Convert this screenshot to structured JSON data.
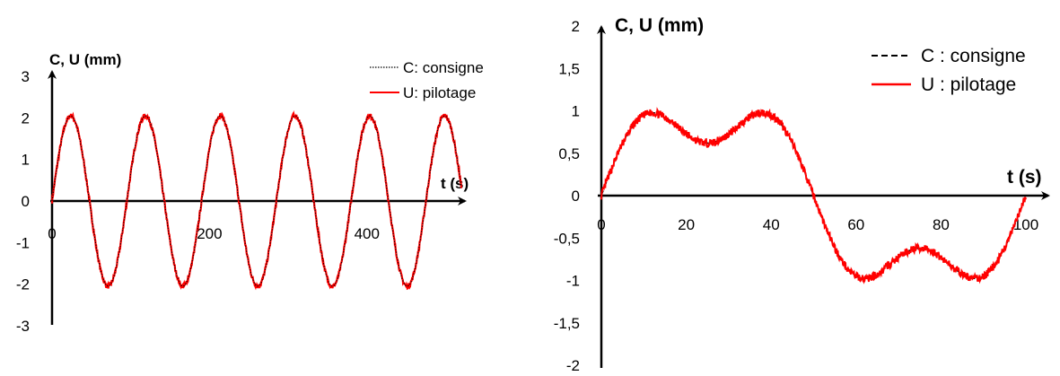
{
  "chart_data": [
    {
      "type": "line",
      "ylabel": "C, U (mm)",
      "xlabel": "t (s)",
      "xlim": [
        0,
        520
      ],
      "ylim": [
        -3,
        3
      ],
      "x_ticks": [
        "0",
        "200",
        "400"
      ],
      "y_ticks": [
        "3",
        "2",
        "1",
        "0",
        "-1",
        "-2",
        "-3"
      ],
      "legend_position": "top-right",
      "signal": {
        "amplitude": 2.05,
        "period": 95,
        "duration": 520
      },
      "series": [
        {
          "name": "C: consigne",
          "color": "#000000",
          "style": "dotted"
        },
        {
          "name": "U: pilotage",
          "color": "#ff0000",
          "style": "solid"
        }
      ]
    },
    {
      "type": "line",
      "ylabel": "C, U (mm)",
      "xlabel": "t (s)",
      "xlim": [
        0,
        105
      ],
      "ylim": [
        -2,
        2
      ],
      "x_ticks": [
        "0",
        "20",
        "40",
        "60",
        "80",
        "100"
      ],
      "y_ticks": [
        "2",
        "1,5",
        "1",
        "0,5",
        "0",
        "-0,5",
        "-1",
        "-1,5",
        "-2"
      ],
      "legend_position": "top-right",
      "signal": {
        "a1": 1.0,
        "a3": 0.38,
        "period": 100
      },
      "series": [
        {
          "name": "C : consigne",
          "color": "#000000",
          "style": "dashed"
        },
        {
          "name": "U : pilotage",
          "color": "#ff0000",
          "style": "solid"
        }
      ]
    }
  ]
}
